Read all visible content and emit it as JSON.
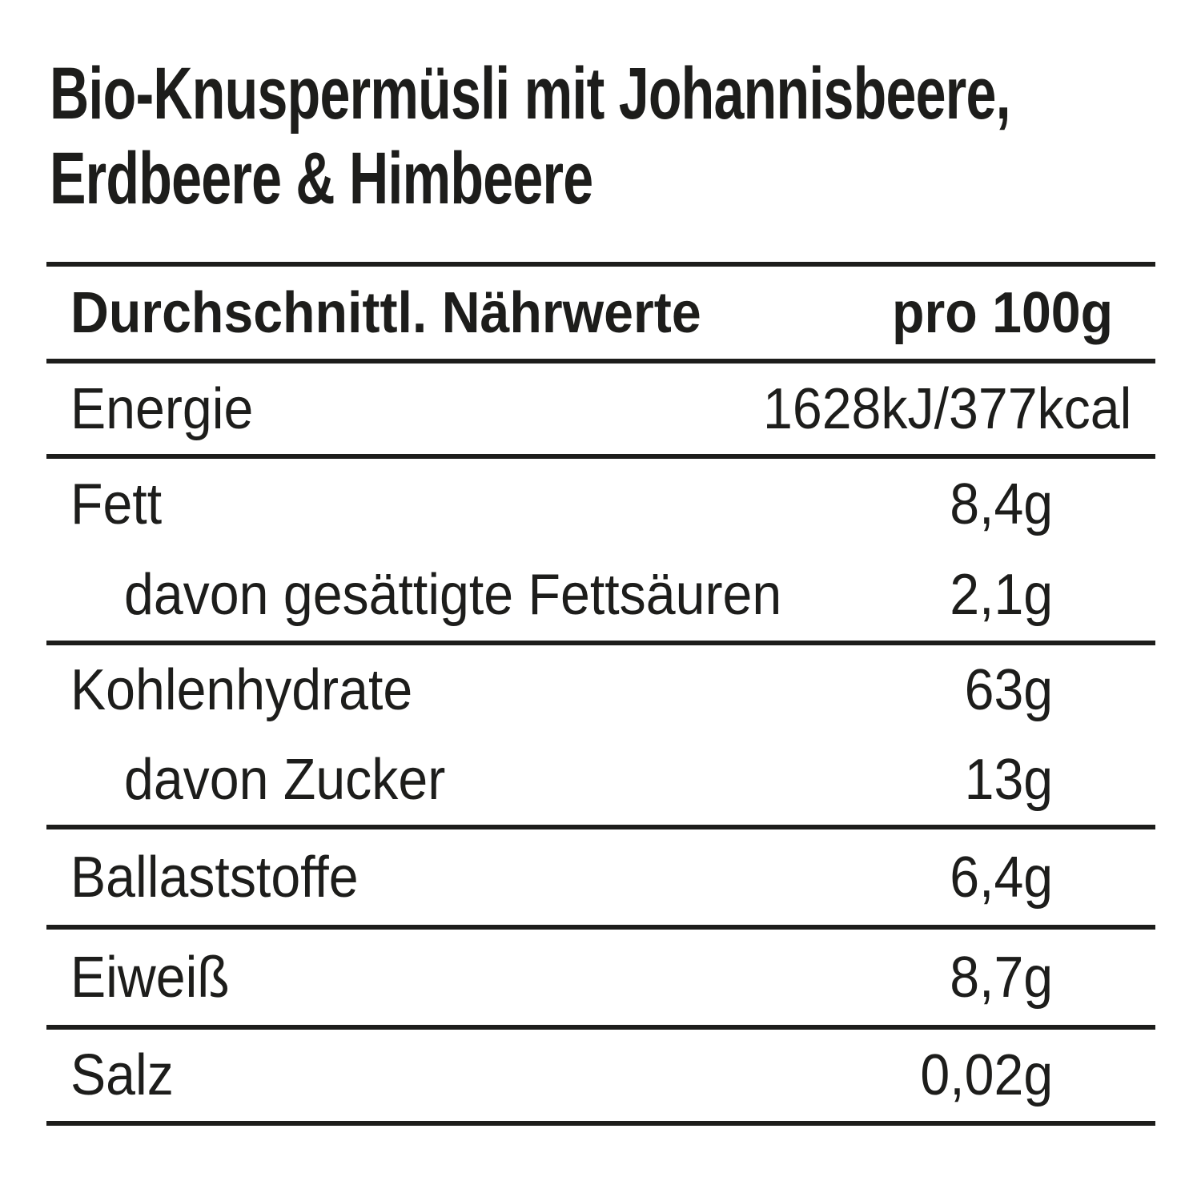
{
  "title": {
    "line1": "Bio-Knuspermüsli mit Johannisbeere,",
    "line2": "Erdbeere & Himbeere"
  },
  "table": {
    "header": {
      "label": "Durchschnittl. Nährwerte",
      "unit": "pro 100g"
    },
    "rows": [
      {
        "label": "Energie",
        "value": "1628kJ/377kcal",
        "indent": false,
        "value_style": "energy",
        "group_end": true
      },
      {
        "label": "Fett",
        "value": "8,4g",
        "indent": false,
        "value_style": "gram",
        "group_end": false
      },
      {
        "label": "davon gesättigte Fettsäuren",
        "value": "2,1g",
        "indent": true,
        "value_style": "gram",
        "group_end": true
      },
      {
        "label": "Kohlenhydrate",
        "value": "63g",
        "indent": false,
        "value_style": "gram",
        "group_end": false
      },
      {
        "label": "davon Zucker",
        "value": "13g",
        "indent": true,
        "value_style": "gram",
        "group_end": true
      },
      {
        "label": "Ballaststoffe",
        "value": "6,4g",
        "indent": false,
        "value_style": "gram",
        "group_end": true
      },
      {
        "label": "Eiweiß",
        "value": "8,7g",
        "indent": false,
        "value_style": "gram",
        "group_end": true
      },
      {
        "label": "Salz",
        "value": "0,02g",
        "indent": false,
        "value_style": "gram",
        "group_end": true
      }
    ]
  },
  "colors": {
    "text": "#1d1d1b",
    "rule": "#1d1d1b",
    "background": "#ffffff"
  }
}
